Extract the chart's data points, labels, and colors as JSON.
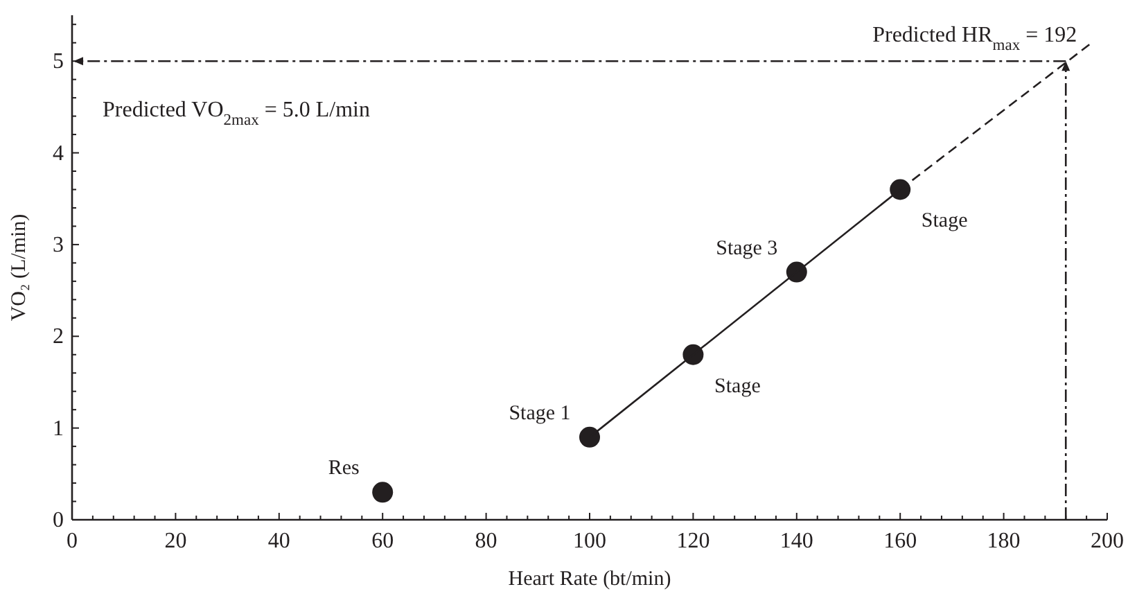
{
  "chart_data": {
    "type": "scatter",
    "xlabel": "Heart Rate (bt/min)",
    "ylabel": "VO₂ (L/min)",
    "xlim": [
      0,
      200
    ],
    "ylim": [
      0,
      5.5
    ],
    "xticks": [
      0,
      {
        "value": 4,
        "label": null
      },
      {
        "value": 8,
        "label": null
      },
      {
        "value": 12,
        "label": null
      },
      {
        "value": 16,
        "label": null
      },
      20,
      {
        "value": 24,
        "label": null
      },
      {
        "value": 28,
        "label": null
      },
      {
        "value": 32,
        "label": null
      },
      {
        "value": 36,
        "label": null
      },
      40,
      {
        "value": 44,
        "label": null
      },
      {
        "value": 48,
        "label": null
      },
      {
        "value": 52,
        "label": null
      },
      {
        "value": 56,
        "label": null
      },
      60,
      {
        "value": 64,
        "label": null
      },
      {
        "value": 68,
        "label": null
      },
      {
        "value": 72,
        "label": null
      },
      {
        "value": 76,
        "label": null
      },
      80,
      {
        "value": 84,
        "label": null
      },
      {
        "value": 88,
        "label": null
      },
      {
        "value": 92,
        "label": null
      },
      {
        "value": 96,
        "label": null
      },
      100,
      {
        "value": 104,
        "label": null
      },
      {
        "value": 108,
        "label": null
      },
      {
        "value": 112,
        "label": null
      },
      {
        "value": 116,
        "label": null
      },
      120,
      {
        "value": 124,
        "label": null
      },
      {
        "value": 128,
        "label": null
      },
      {
        "value": 132,
        "label": null
      },
      {
        "value": 136,
        "label": null
      },
      140,
      {
        "value": 144,
        "label": null
      },
      {
        "value": 148,
        "label": null
      },
      {
        "value": 152,
        "label": null
      },
      {
        "value": 156,
        "label": null
      },
      160,
      {
        "value": 164,
        "label": null
      },
      {
        "value": 168,
        "label": null
      },
      {
        "value": 172,
        "label": null
      },
      {
        "value": 176,
        "label": null
      },
      180,
      {
        "value": 184,
        "label": null
      },
      {
        "value": 188,
        "label": null
      },
      {
        "value": 192,
        "label": null
      },
      {
        "value": 196,
        "label": null
      },
      200
    ],
    "yticks": [
      0,
      {
        "value": 0.2,
        "label": null
      },
      {
        "value": 0.4,
        "label": null
      },
      {
        "value": 0.6,
        "label": null
      },
      {
        "value": 0.8,
        "label": null
      },
      1,
      {
        "value": 1.2,
        "label": null
      },
      {
        "value": 1.4,
        "label": null
      },
      {
        "value": 1.6,
        "label": null
      },
      {
        "value": 1.8,
        "label": null
      },
      2,
      {
        "value": 2.2,
        "label": null
      },
      {
        "value": 2.4,
        "label": null
      },
      {
        "value": 2.6,
        "label": null
      },
      {
        "value": 2.8,
        "label": null
      },
      3,
      {
        "value": 3.2,
        "label": null
      },
      {
        "value": 3.4,
        "label": null
      },
      {
        "value": 3.6,
        "label": null
      },
      {
        "value": 3.8,
        "label": null
      },
      4,
      {
        "value": 4.2,
        "label": null
      },
      {
        "value": 4.4,
        "label": null
      },
      {
        "value": 4.6,
        "label": null
      },
      {
        "value": 4.8,
        "label": null
      },
      5,
      {
        "value": 5.2,
        "label": null
      },
      {
        "value": 5.4,
        "label": null
      }
    ],
    "series": [
      {
        "color": "#231f20",
        "marker": "circle",
        "x": [
          60,
          100,
          120,
          140,
          160
        ],
        "values": [
          0.3,
          0.9,
          1.8,
          2.7,
          3.6
        ]
      },
      {
        "type": "line",
        "color": "#231f20",
        "marker": "none",
        "line_style": "solid",
        "x": [
          100,
          160
        ],
        "values": [
          0.9,
          3.6
        ]
      },
      {
        "type": "line",
        "color": "#231f20",
        "marker": "none",
        "line_style": "dashed",
        "x": [
          160,
          197
        ],
        "values": [
          3.6,
          5.2
        ]
      }
    ],
    "annotations": [
      {
        "text": "Res",
        "x": 60,
        "y": 0.3
      },
      {
        "text": "Stage 1",
        "x": 100,
        "y": 0.9
      },
      {
        "text": "Stage",
        "x": 120,
        "y": 1.8
      },
      {
        "text": "Stage 3",
        "x": 140,
        "y": 2.7
      },
      {
        "text": "Stage",
        "x": 160,
        "y": 3.6
      },
      {
        "text": "Predicted HR$_{max}$ = 192",
        "x": 192,
        "y": 5
      },
      "Predicted VO$_{2max}$ = 5.0 L/min"
    ]
  }
}
